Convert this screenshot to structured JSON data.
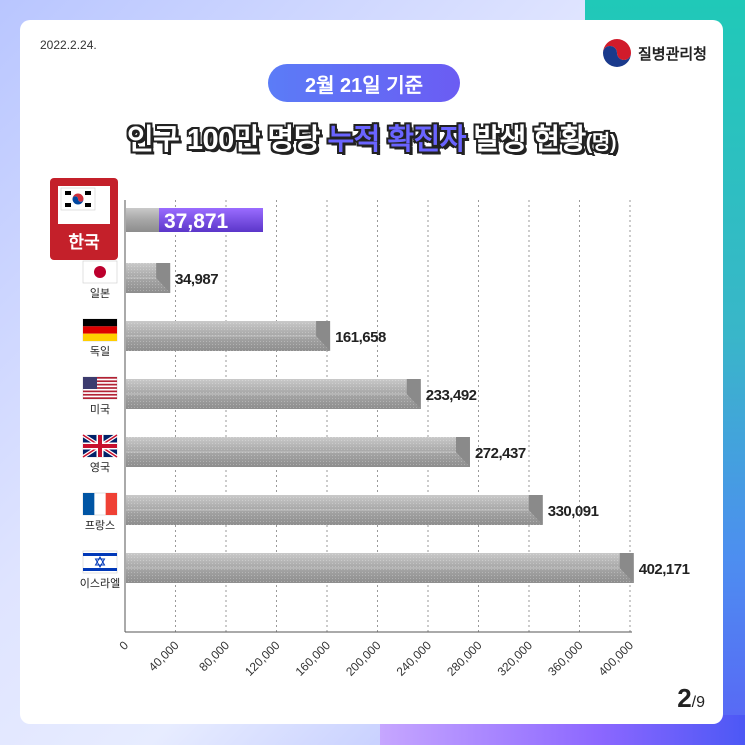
{
  "header": {
    "date": "2022.2.24.",
    "agency": "질병관리청",
    "badge": "2월 21일 기준",
    "title_part1": "인구 100만 명당 ",
    "title_highlight": "누적 확진자",
    "title_part2": " 발생 현황",
    "title_unit": "(명)"
  },
  "footer": {
    "page_current": "2",
    "page_total": "/9"
  },
  "colors": {
    "accent": "#6a64ff",
    "highlight_bar": "#7b4fe8",
    "korea_label_bg": "#c4202a",
    "bar_gray": "#a9a9a9"
  },
  "chart_data": {
    "type": "bar",
    "orientation": "horizontal",
    "title": "인구 100만 명당 누적 확진자 발생 현황(명)",
    "categories": [
      "한국",
      "일본",
      "독일",
      "미국",
      "영국",
      "프랑스",
      "이스라엘"
    ],
    "flags": [
      "flag-korea-icon",
      "flag-japan-icon",
      "flag-germany-icon",
      "flag-usa-icon",
      "flag-uk-icon",
      "flag-france-icon",
      "flag-israel-icon"
    ],
    "values": [
      37871,
      34987,
      161658,
      233492,
      272437,
      330091,
      402171
    ],
    "value_labels": [
      "37,871",
      "34,987",
      "161,658",
      "233,492",
      "272,437",
      "330,091",
      "402,171"
    ],
    "highlight": "한국",
    "xlim": [
      0,
      400000
    ],
    "xticks": [
      "0",
      "40,000",
      "80,000",
      "120,000",
      "160,000",
      "200,000",
      "240,000",
      "280,000",
      "320,000",
      "360,000",
      "400,000"
    ],
    "grid": "vertical dotted lines",
    "legend": "none"
  }
}
